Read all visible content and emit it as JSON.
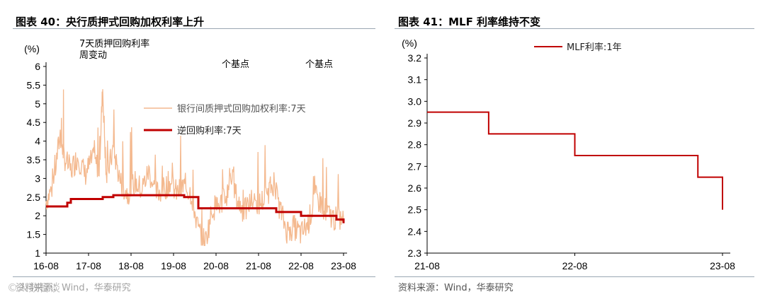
{
  "left_panel": {
    "title": "图表 40：央行质押式回购加权利率上升",
    "source": "资料来源：Wind，华泰研究",
    "watermark": "©人数智谈"
  },
  "right_panel": {
    "title": "图表 41：MLF 利率维持不变",
    "source": "资料来源：Wind，华泰研究"
  },
  "colors": {
    "light_series": "#f4b98f",
    "dark_series": "#c00000",
    "rule": "#9aa7b3",
    "axis": "#000000"
  },
  "chart_data": [
    {
      "type": "line",
      "ylabel": "(%)",
      "ylim": [
        1,
        6
      ],
      "yticks": [
        "1",
        "1.5",
        "2",
        "2.5",
        "3",
        "3.5",
        "4",
        "4.5",
        "5",
        "5.5",
        "6"
      ],
      "xticks": [
        "16-08",
        "17-08",
        "18-08",
        "19-08",
        "20-08",
        "21-08",
        "22-08",
        "23-08"
      ],
      "grid": false,
      "legend_position": "top-center",
      "annotations": [
        "7天质押回购利率",
        "周变动",
        "个基点",
        "个基点"
      ],
      "series": [
        {
          "name": "银行间质押式回购加权利率:7天",
          "color": "#f4b98f",
          "x": [
            "2016-08",
            "2016-10",
            "2016-12",
            "2017-01",
            "2017-03",
            "2017-05",
            "2017-07",
            "2017-09",
            "2017-11",
            "2017-12",
            "2018-01",
            "2018-03",
            "2018-05",
            "2018-07",
            "2018-09",
            "2018-11",
            "2019-01",
            "2019-03",
            "2019-05",
            "2019-07",
            "2019-09",
            "2019-11",
            "2020-01",
            "2020-03",
            "2020-05",
            "2020-07",
            "2020-09",
            "2020-11",
            "2020-12",
            "2021-02",
            "2021-04",
            "2021-06",
            "2021-08",
            "2021-10",
            "2021-12",
            "2022-02",
            "2022-04",
            "2022-06",
            "2022-08",
            "2022-10",
            "2022-12",
            "2023-02",
            "2023-04",
            "2023-06",
            "2023-08"
          ],
          "values": [
            2.4,
            2.8,
            4.2,
            3.6,
            3.2,
            3.6,
            3.1,
            3.5,
            3.3,
            5.4,
            3.0,
            3.8,
            2.9,
            2.6,
            2.9,
            2.7,
            3.2,
            2.6,
            2.7,
            2.9,
            2.6,
            2.8,
            2.6,
            1.6,
            1.3,
            2.2,
            2.3,
            2.5,
            3.2,
            2.4,
            2.1,
            2.4,
            2.3,
            2.5,
            2.9,
            2.2,
            1.6,
            1.7,
            1.5,
            1.8,
            2.5,
            2.3,
            2.0,
            1.9,
            1.9
          ]
        },
        {
          "name": "逆回购利率:7天",
          "color": "#c00000",
          "step": true,
          "x": [
            "2016-08",
            "2017-02",
            "2017-03",
            "2017-12",
            "2018-03",
            "2019-11",
            "2020-03",
            "2022-01",
            "2022-08",
            "2023-06",
            "2023-08"
          ],
          "values": [
            2.25,
            2.35,
            2.45,
            2.5,
            2.55,
            2.5,
            2.2,
            2.1,
            2.0,
            1.9,
            1.8
          ]
        }
      ]
    },
    {
      "type": "line",
      "ylabel": "(%)",
      "ylim": [
        2.3,
        3.2
      ],
      "yticks": [
        "2.3",
        "2.4",
        "2.5",
        "2.6",
        "2.7",
        "2.8",
        "2.9",
        "3.0",
        "3.1",
        "3.2"
      ],
      "xticks": [
        "21-08",
        "22-08",
        "23-08"
      ],
      "grid": false,
      "legend_position": "top-center",
      "series": [
        {
          "name": "MLF利率:1年",
          "color": "#c00000",
          "step": true,
          "x": [
            "2021-08",
            "2021-12",
            "2022-01",
            "2022-08",
            "2023-06",
            "2023-08"
          ],
          "values": [
            2.95,
            2.95,
            2.85,
            2.75,
            2.65,
            2.5
          ]
        }
      ]
    }
  ]
}
